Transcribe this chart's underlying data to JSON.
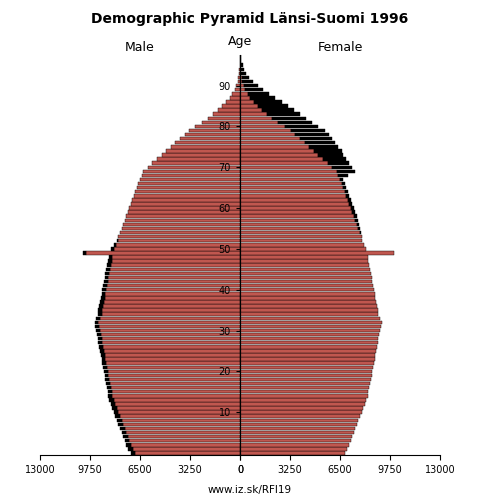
{
  "title": "Demographic Pyramid Länsi-Suomi 1996",
  "male_label": "Male",
  "female_label": "Female",
  "age_label": "Age",
  "source": "www.iz.sk/RFI19",
  "xlim": 13000,
  "bar_color": "#c0574f",
  "bar_edge_color": "#000000",
  "excess_color": "#000000",
  "male": [
    7100,
    7250,
    7400,
    7500,
    7600,
    7700,
    7800,
    7900,
    8000,
    8100,
    8200,
    8300,
    8400,
    8500,
    8550,
    8600,
    8650,
    8700,
    8750,
    8800,
    8850,
    8900,
    8950,
    9000,
    9050,
    9100,
    9150,
    9200,
    9250,
    9300,
    9350,
    9400,
    9450,
    9350,
    9250,
    9200,
    9150,
    9100,
    9050,
    9000,
    8950,
    8900,
    8850,
    8800,
    8750,
    8700,
    8650,
    8600,
    8500,
    10200,
    8400,
    8200,
    8000,
    7900,
    7800,
    7700,
    7600,
    7500,
    7400,
    7300,
    7200,
    7100,
    7000,
    6900,
    6800,
    6700,
    6600,
    6500,
    6400,
    6300,
    6000,
    5700,
    5400,
    5100,
    4800,
    4500,
    4200,
    3900,
    3600,
    3300,
    2900,
    2500,
    2100,
    1750,
    1450,
    1150,
    900,
    680,
    500,
    350,
    240,
    160,
    100,
    60,
    35,
    20,
    10,
    5
  ],
  "female": [
    6800,
    6950,
    7100,
    7200,
    7300,
    7400,
    7500,
    7600,
    7700,
    7800,
    7900,
    8000,
    8100,
    8200,
    8300,
    8350,
    8400,
    8450,
    8500,
    8550,
    8600,
    8650,
    8700,
    8750,
    8800,
    8850,
    8900,
    8950,
    9000,
    9050,
    9100,
    9150,
    9200,
    9100,
    9000,
    8950,
    8900,
    8850,
    8800,
    8750,
    8700,
    8650,
    8600,
    8550,
    8500,
    8450,
    8400,
    8350,
    8300,
    10000,
    8200,
    8050,
    7950,
    7900,
    7850,
    7800,
    7750,
    7700,
    7600,
    7500,
    7400,
    7300,
    7200,
    7100,
    7000,
    6900,
    6800,
    6700,
    7000,
    7500,
    7300,
    7100,
    6900,
    6700,
    6600,
    6400,
    6200,
    6000,
    5800,
    5500,
    5100,
    4700,
    4300,
    3900,
    3500,
    3100,
    2700,
    2300,
    1900,
    1500,
    1150,
    850,
    600,
    420,
    280,
    170,
    95,
    48
  ]
}
